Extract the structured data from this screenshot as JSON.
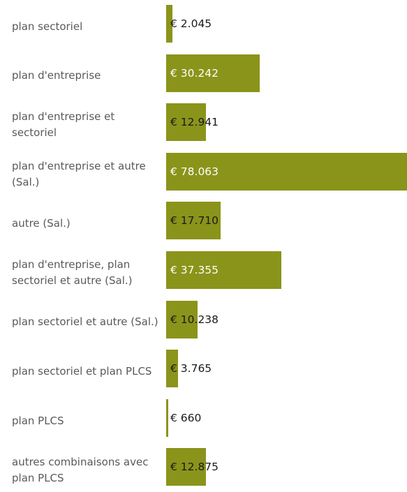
{
  "chart_data": {
    "type": "bar",
    "orientation": "horizontal",
    "currency_prefix": "€ ",
    "bar_color": "#8a941a",
    "label_color_outside": "#1a1a1a",
    "label_color_inside": "#ffffff",
    "category_label_color": "#595959",
    "categories": [
      "plan sectoriel",
      "plan d'entreprise",
      "plan d'entreprise et sectoriel",
      "plan d'entreprise et autre (Sal.)",
      "autre (Sal.)",
      "plan d'entreprise, plan sectoriel et autre (Sal.)",
      "plan sectoriel et autre (Sal.)",
      "plan sectoriel et plan PLCS",
      "plan PLCS",
      "autres combinaisons avec plan PLCS"
    ],
    "values": [
      2045,
      30242,
      12941,
      78063,
      17710,
      37355,
      10238,
      3765,
      660,
      12875
    ],
    "value_labels": [
      "€ 2.045",
      "€ 30.242",
      "€ 12.941",
      "€ 78.063",
      "€ 17.710",
      "€ 37.355",
      "€ 10.238",
      "€ 3.765",
      "€ 660",
      "€ 12.875"
    ],
    "xlim": [
      0,
      78063
    ],
    "grid": false,
    "legend": "none"
  }
}
